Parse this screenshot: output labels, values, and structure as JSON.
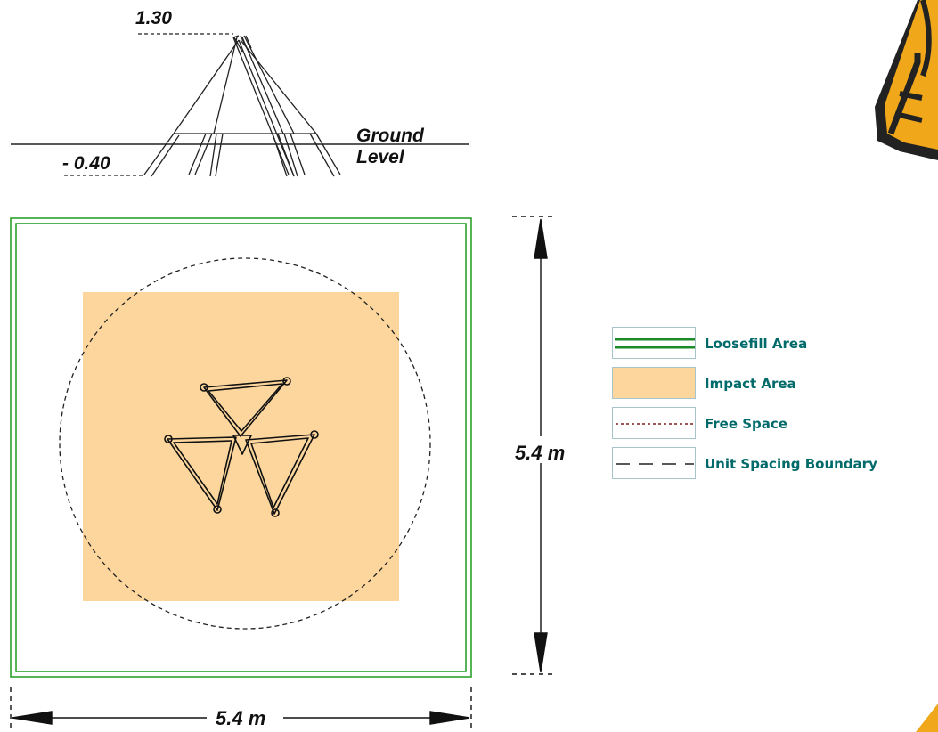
{
  "elevation": {
    "top_height_label": "1.30",
    "depth_label": "- 0.40",
    "ground_label_line1": "Ground",
    "ground_label_line2": "Level"
  },
  "plan": {
    "height_dimension_label": "5.4 m",
    "width_dimension_label": "5.4 m"
  },
  "legend": {
    "label_color": "#006a6a",
    "items": [
      {
        "label": "Loosefill Area",
        "icon": "double-green-line",
        "color": "#1f8a2a"
      },
      {
        "label": "Impact Area",
        "icon": "orange-fill",
        "color": "#fcd69c"
      },
      {
        "label": "Free Space",
        "icon": "dotted-line",
        "color": "#7a1e1e"
      },
      {
        "label": "Unit Spacing Boundary",
        "icon": "long-dash-line",
        "color": "#222222"
      }
    ]
  },
  "colors": {
    "loosefill_border": "#1f9a1f",
    "impact_fill": "#fcd69c",
    "logo_orange": "#f0a81a"
  }
}
